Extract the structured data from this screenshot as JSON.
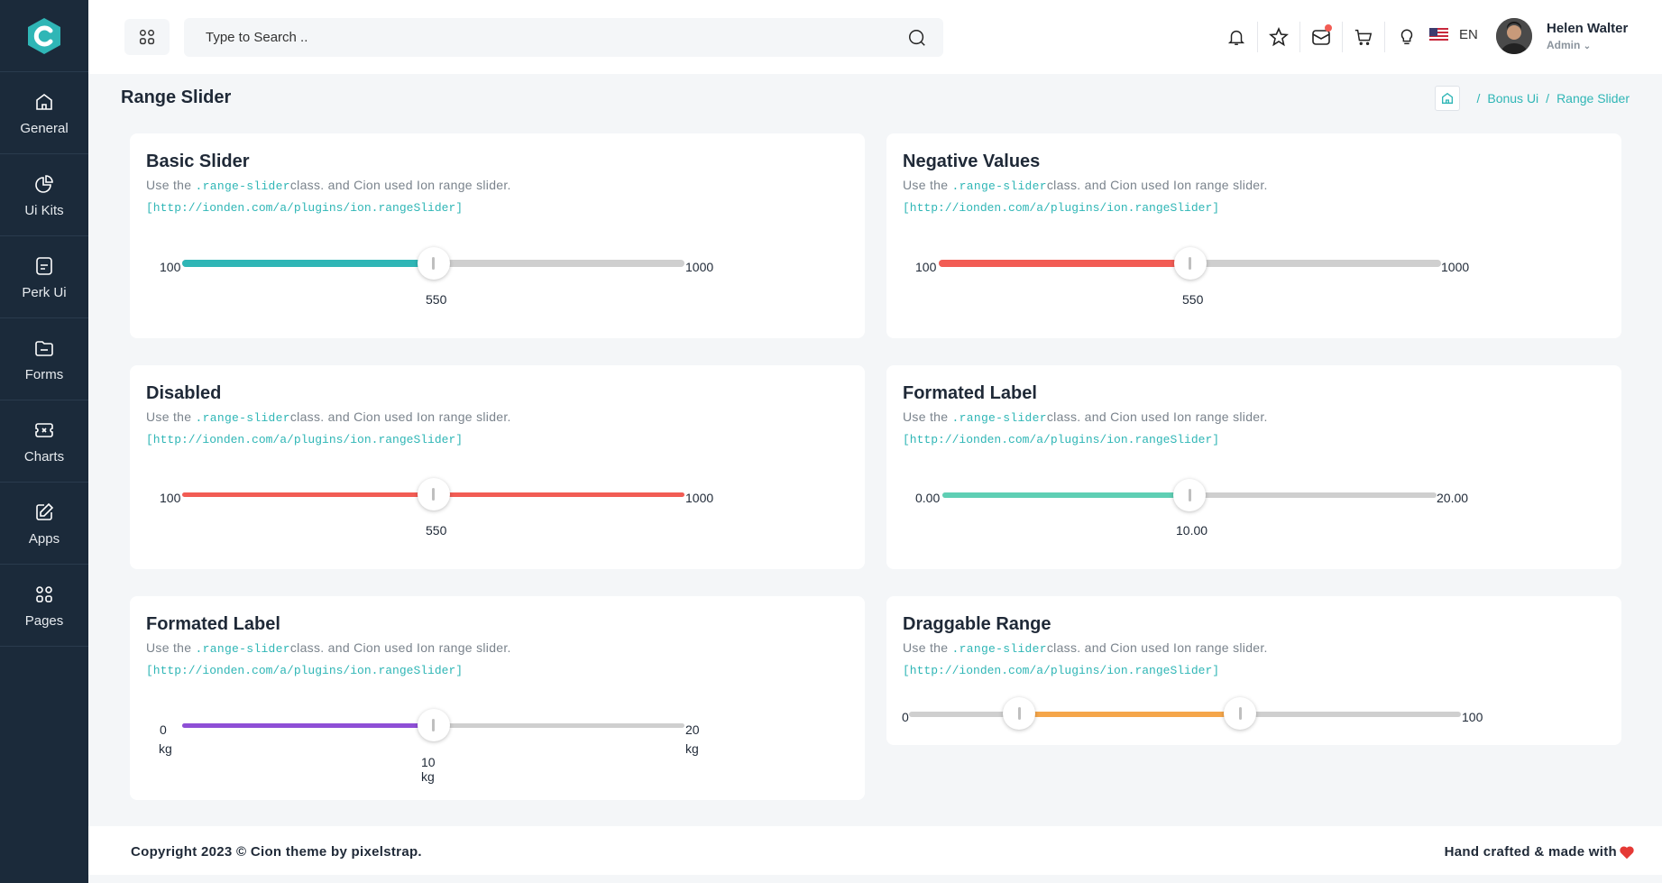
{
  "sidebar": {
    "items": [
      {
        "label": "General",
        "icon": "home-icon"
      },
      {
        "label": "Ui Kits",
        "icon": "pie-chart-icon"
      },
      {
        "label": "Perk Ui",
        "icon": "document-icon"
      },
      {
        "label": "Forms",
        "icon": "folder-icon"
      },
      {
        "label": "Charts",
        "icon": "ticket-icon"
      },
      {
        "label": "Apps",
        "icon": "edit-icon"
      },
      {
        "label": "Pages",
        "icon": "grid-icon"
      }
    ]
  },
  "header": {
    "search_placeholder": "Type to Search ..",
    "language": "EN",
    "user_name": "Helen Walter",
    "user_role": "Admin"
  },
  "page": {
    "title": "Range Slider",
    "breadcrumb": [
      "Bonus Ui",
      "Range Slider"
    ]
  },
  "common": {
    "desc_prefix": "Use the ",
    "desc_code": ".range-slider",
    "desc_suffix": "class. and Cion used Ion range slider.",
    "link": "[http://ionden.com/a/plugins/ion.rangeSlider]"
  },
  "cards": {
    "basic": {
      "title": "Basic Slider",
      "min": "100",
      "max": "1000",
      "value": "550",
      "color": "#2fb6b6",
      "fraction": 0.5
    },
    "negative": {
      "title": "Negative Values",
      "min": "100",
      "max": "1000",
      "value": "550",
      "color": "#f25c54",
      "fraction": 0.5
    },
    "disabled": {
      "title": "Disabled",
      "min": "100",
      "max": "1000",
      "value": "550",
      "color": "#f25c54",
      "fraction": 0.5
    },
    "formatted": {
      "title": "Formated Label",
      "min": "0.00",
      "max": "20.00",
      "value": "10.00",
      "color": "#5fcfb4",
      "fraction": 0.5
    },
    "formatted_kg": {
      "title": "Formated Label",
      "min": "0",
      "min_unit": "kg",
      "max": "20",
      "max_unit": "kg",
      "value": "10 kg",
      "color": "#8e4fd6",
      "fraction": 0.5
    },
    "draggable": {
      "title": "Draggable Range",
      "min": "0",
      "max": "100",
      "from_fraction": 0.2,
      "to_fraction": 0.6,
      "color": "#f5a64a"
    }
  },
  "footer": {
    "left": "Copyright 2023 © Cion theme by pixelstrap.",
    "right": "Hand crafted & made with"
  }
}
